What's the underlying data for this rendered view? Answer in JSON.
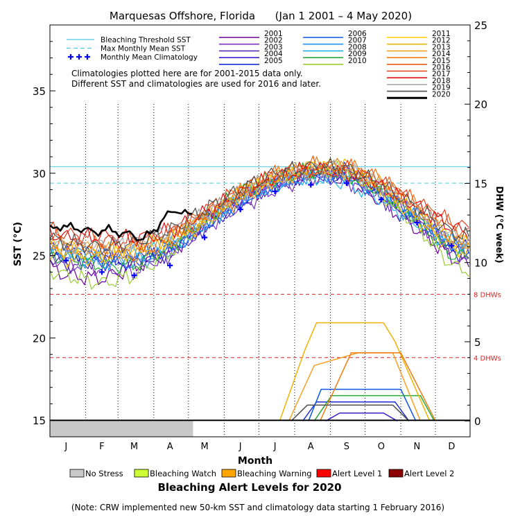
{
  "chart_data": {
    "type": "line",
    "title": "Marquesas Offshore, Florida      (Jan 1 2001 – 4 May 2020)",
    "xlabel": "Month",
    "ylabel_left": "SST (°C)",
    "ylabel_right": "DHW (°C week)",
    "ylim_left": [
      14,
      39
    ],
    "ylim_right": [
      -1,
      25
    ],
    "left_ticks": [
      15,
      20,
      25,
      30,
      35
    ],
    "right_ticks": [
      0,
      5,
      10,
      15,
      20,
      25
    ],
    "months": [
      "J",
      "F",
      "M",
      "A",
      "M",
      "J",
      "J",
      "A",
      "S",
      "O",
      "N",
      "D"
    ],
    "month_mid_day": [
      15,
      46,
      74,
      105,
      135,
      166,
      196,
      227,
      258,
      288,
      319,
      349
    ],
    "month_gridline_day": [
      32,
      60,
      91,
      121,
      152,
      182,
      213,
      244,
      274,
      305,
      335
    ],
    "bleaching_threshold_sst": 30.4,
    "max_monthly_mean_sst": 29.4,
    "dhw_thresholds": [
      {
        "value": 4,
        "label": "4 DHWs"
      },
      {
        "value": 8,
        "label": "8 DHWs"
      }
    ],
    "notes": [
      "Climatologies plotted here are for 2001-2015 data only.",
      "Different SST and climatologies are used for 2016 and later."
    ],
    "legend_left": [
      {
        "label": "Bleaching Threshold SST",
        "style": "solid",
        "color": "#4dc9e6"
      },
      {
        "label": "Max Monthly Mean SST",
        "style": "dash",
        "color": "#4dc9e6"
      },
      {
        "label": "Monthly Mean Climatology",
        "style": "plus",
        "color": "#0000ff"
      }
    ],
    "climatology": {
      "day": [
        15,
        46,
        74,
        105,
        135,
        166,
        196,
        227,
        258,
        288,
        319,
        349
      ],
      "sst": [
        24.7,
        24.0,
        23.8,
        24.4,
        26.1,
        27.8,
        28.9,
        29.3,
        29.4,
        28.4,
        27.0,
        25.6
      ]
    },
    "series": [
      {
        "name": "2001",
        "color": "#660099",
        "width": 1.2,
        "amp": 0.6,
        "sst": [
          23.8,
          23.6,
          24.3,
          25.2,
          26.9,
          28.4,
          29.4,
          29.9,
          29.6,
          28.3,
          26.6,
          24.9
        ],
        "dhw_day": [],
        "dhw": []
      },
      {
        "name": "2002",
        "color": "#7a30c8",
        "width": 1.2,
        "amp": 0.6,
        "sst": [
          24.6,
          24.2,
          24.0,
          25.2,
          26.7,
          28.0,
          29.0,
          29.8,
          29.6,
          28.6,
          27.0,
          25.4
        ],
        "dhw_day": [],
        "dhw": []
      },
      {
        "name": "2003",
        "color": "#5a2db0",
        "width": 1.2,
        "amp": 0.6,
        "sst": [
          24.4,
          24.8,
          24.8,
          25.0,
          26.8,
          28.2,
          29.3,
          30.0,
          29.8,
          28.5,
          27.1,
          25.6
        ],
        "dhw_day": [],
        "dhw": []
      },
      {
        "name": "2004",
        "color": "#3b1ccc",
        "width": 1.2,
        "amp": 0.6,
        "sst": [
          24.6,
          24.6,
          24.6,
          25.2,
          26.7,
          28.2,
          29.4,
          29.9,
          30.0,
          28.9,
          27.1,
          25.3
        ],
        "dhw_day": [
          240,
          252,
          290,
          302
        ],
        "dhw": [
          0,
          0.5,
          0.5,
          0
        ]
      },
      {
        "name": "2005",
        "color": "#1a2bd6",
        "width": 1.2,
        "amp": 0.6,
        "sst": [
          25.2,
          24.8,
          24.7,
          25.5,
          27.1,
          28.6,
          29.5,
          30.1,
          30.2,
          29.0,
          27.4,
          25.7
        ],
        "dhw_day": [
          220,
          232,
          300,
          312
        ],
        "dhw": [
          0,
          1.2,
          1.2,
          0
        ]
      },
      {
        "name": "2006",
        "color": "#0a55e6",
        "width": 1.2,
        "amp": 0.6,
        "sst": [
          25.2,
          25.2,
          25.0,
          25.6,
          26.8,
          28.3,
          29.5,
          30.0,
          29.9,
          28.9,
          27.4,
          25.6
        ],
        "dhw_day": [
          225,
          236,
          305,
          318
        ],
        "dhw": [
          0,
          2.0,
          2.0,
          0
        ]
      },
      {
        "name": "2007",
        "color": "#1e90ff",
        "width": 1.2,
        "amp": 0.6,
        "sst": [
          25.4,
          24.7,
          24.5,
          25.3,
          26.9,
          28.4,
          29.4,
          29.9,
          29.9,
          28.6,
          27.2,
          25.8
        ],
        "dhw_day": [],
        "dhw": []
      },
      {
        "name": "2008",
        "color": "#20b0ee",
        "width": 1.2,
        "amp": 0.6,
        "sst": [
          25.0,
          24.6,
          25.1,
          25.6,
          26.9,
          28.4,
          29.3,
          29.8,
          29.4,
          28.4,
          27.0,
          25.6
        ],
        "dhw_day": [],
        "dhw": []
      },
      {
        "name": "2009",
        "color": "#22aa33",
        "width": 1.2,
        "amp": 0.6,
        "sst": [
          24.9,
          24.4,
          24.4,
          25.5,
          27.2,
          28.9,
          29.7,
          30.2,
          30.0,
          28.9,
          27.2,
          25.0
        ],
        "dhw_day": [
          230,
          245,
          322,
          334
        ],
        "dhw": [
          0,
          1.6,
          1.6,
          0
        ]
      },
      {
        "name": "2010",
        "color": "#99cc33",
        "width": 1.2,
        "amp": 0.6,
        "sst": [
          23.8,
          23.3,
          23.8,
          25.2,
          27.1,
          28.8,
          29.8,
          30.1,
          30.2,
          28.8,
          26.8,
          24.4
        ],
        "dhw_day": [],
        "dhw": []
      },
      {
        "name": "2011",
        "color": "#ffcc00",
        "width": 1.2,
        "amp": 0.6,
        "sst": [
          24.8,
          24.9,
          25.3,
          26.0,
          27.3,
          28.8,
          29.8,
          30.4,
          30.1,
          28.9,
          27.2,
          25.5
        ],
        "dhw_day": [],
        "dhw": []
      },
      {
        "name": "2012",
        "color": "#f2b200",
        "width": 1.2,
        "amp": 0.6,
        "sst": [
          25.3,
          25.1,
          25.5,
          26.1,
          27.3,
          28.6,
          29.7,
          30.4,
          30.5,
          29.2,
          27.5,
          25.9
        ],
        "dhw_day": [
          200,
          222,
          232,
          290,
          300,
          330
        ],
        "dhw": [
          0,
          4.5,
          6.2,
          6.2,
          5.0,
          0
        ]
      },
      {
        "name": "2013",
        "color": "#f5a020",
        "width": 1.2,
        "amp": 0.6,
        "sst": [
          25.5,
          25.4,
          25.0,
          25.8,
          27.0,
          28.5,
          29.6,
          30.2,
          30.3,
          29.4,
          27.7,
          25.9
        ],
        "dhw_day": [
          208,
          230,
          268,
          298,
          322
        ],
        "dhw": [
          0,
          3.5,
          4.3,
          4.3,
          0
        ]
      },
      {
        "name": "2014",
        "color": "#f07a10",
        "width": 1.2,
        "amp": 0.6,
        "sst": [
          25.6,
          25.3,
          25.1,
          25.9,
          27.4,
          28.9,
          29.8,
          30.4,
          30.5,
          29.6,
          28.0,
          26.0
        ],
        "dhw_day": [
          235,
          262,
          305,
          335
        ],
        "dhw": [
          0,
          4.3,
          4.3,
          0
        ]
      },
      {
        "name": "2015",
        "color": "#ee5a10",
        "width": 1.2,
        "amp": 0.6,
        "sst": [
          25.8,
          25.6,
          25.6,
          26.2,
          27.6,
          29.0,
          30.0,
          30.5,
          30.4,
          29.6,
          28.2,
          26.8
        ],
        "dhw_day": [],
        "dhw": []
      },
      {
        "name": "2016",
        "color": "#e63e1a",
        "width": 1.2,
        "amp": 0.6,
        "sst": [
          26.3,
          26.0,
          25.8,
          26.5,
          27.7,
          29.0,
          29.9,
          30.2,
          30.3,
          29.4,
          28.2,
          27.0
        ],
        "dhw_day": [],
        "dhw": []
      },
      {
        "name": "2017",
        "color": "#dd1111",
        "width": 1.2,
        "amp": 0.6,
        "sst": [
          26.1,
          26.2,
          26.0,
          26.5,
          27.6,
          28.8,
          29.8,
          30.3,
          30.0,
          29.2,
          28.0,
          26.7
        ],
        "dhw_day": [],
        "dhw": []
      },
      {
        "name": "2018",
        "color": "#a8a8a8",
        "width": 1.2,
        "amp": 0.6,
        "sst": [
          25.5,
          25.6,
          25.7,
          26.4,
          27.5,
          28.9,
          29.8,
          30.2,
          30.3,
          29.3,
          27.8,
          26.2
        ],
        "dhw_day": [],
        "dhw": []
      },
      {
        "name": "2019",
        "color": "#505050",
        "width": 1.2,
        "amp": 0.6,
        "sst": [
          25.8,
          25.5,
          25.8,
          26.5,
          27.8,
          29.0,
          30.0,
          30.4,
          30.3,
          29.3,
          27.9,
          26.4
        ],
        "dhw_day": [
          210,
          224,
          298,
          312
        ],
        "dhw": [
          0,
          1.0,
          1.0,
          0
        ]
      },
      {
        "name": "2020",
        "color": "#000000",
        "width": 2.6,
        "amp": 0.3,
        "day": [
          1,
          10,
          20,
          30,
          40,
          50,
          60,
          70,
          80,
          90,
          100,
          110,
          120,
          125
        ],
        "sst": [
          26.6,
          26.8,
          26.7,
          26.6,
          26.4,
          26.6,
          26.4,
          26.3,
          26.0,
          26.4,
          27.3,
          27.8,
          27.5,
          27.4
        ],
        "dhw_day": [
          1,
          125
        ],
        "dhw": [
          0,
          0
        ]
      }
    ],
    "alert_legend": [
      {
        "label": "No Stress",
        "color": "#c8c8c8"
      },
      {
        "label": "Bleaching Watch",
        "color": "#ccff33"
      },
      {
        "label": "Bleaching Warning",
        "color": "#ffa500"
      },
      {
        "label": "Alert Level 1",
        "color": "#ff0000"
      },
      {
        "label": "Alert Level 2",
        "color": "#8b0000"
      }
    ],
    "alert_bar": {
      "level": "No Stress",
      "color": "#c8c8c8",
      "start_day": 1,
      "end_day": 125
    },
    "alert_title": "Bleaching Alert Levels for 2020",
    "footnote": "(Note: CRW implemented new 50-km SST and climatology data starting 1 February 2016)"
  }
}
